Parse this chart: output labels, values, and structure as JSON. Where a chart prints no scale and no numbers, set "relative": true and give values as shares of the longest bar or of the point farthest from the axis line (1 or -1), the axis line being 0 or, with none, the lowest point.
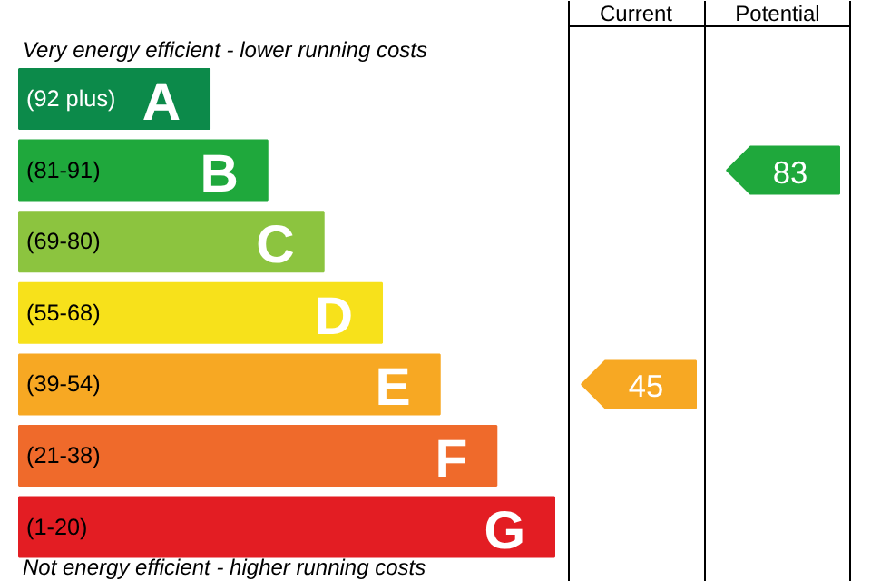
{
  "chart_data": {
    "type": "bar",
    "orientation": "horizontal",
    "relative": true,
    "categories": [
      "A",
      "B",
      "C",
      "D",
      "E",
      "F",
      "G"
    ],
    "values": [
      0.356,
      0.464,
      0.569,
      0.678,
      0.786,
      0.892,
      1
    ],
    "colors": [
      "#0c8a4a",
      "#1fa83c",
      "#8cc43f",
      "#f7e11b",
      "#f7a823",
      "#ef6a2b",
      "#e31d23"
    ],
    "annotations": [
      "Very energy efficient - lower running costs",
      "Not energy efficient - higher running costs",
      "Current",
      "Potential",
      "45",
      "83",
      "(92 plus)",
      "(81-91)",
      "(69-80)",
      "(55-68)",
      "(39-54)",
      "(21-38)",
      "(1-20)"
    ]
  }
}
